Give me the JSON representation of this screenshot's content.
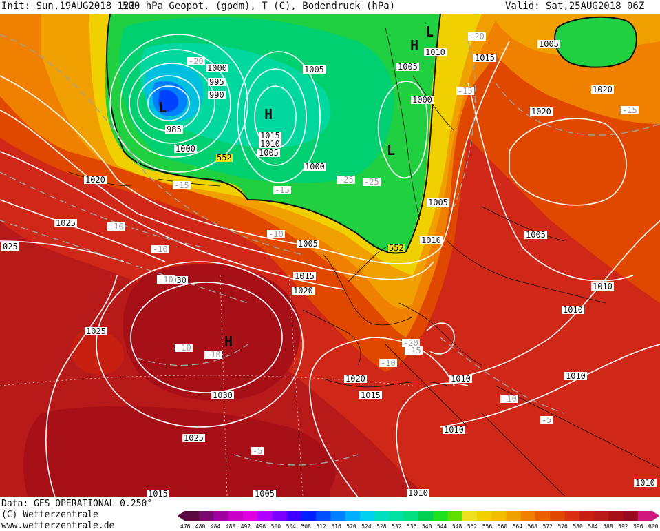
{
  "header": {
    "init": "Init: Sun,19AUG2018 12Z",
    "title": "500 hPa Geopot. (gpdm), T (C), Bodendruck (hPa)",
    "valid": "Valid: Sat,25AUG2018 06Z"
  },
  "map": {
    "pressure_labels": [
      "1000",
      "995",
      "990",
      "985",
      "1000",
      "1005",
      "1005",
      "1015",
      "1010",
      "1005",
      "1000",
      "1010",
      "1015",
      "1005",
      "1000",
      "1005",
      "1020",
      "1005",
      "1010",
      "1020",
      "1025",
      "025",
      "1005",
      "1015",
      "1020",
      "1030",
      "1025",
      "1030",
      "1025",
      "1020",
      "1015",
      "1010",
      "1010",
      "1010",
      "1015",
      "1020",
      "1010",
      "1010",
      "1010",
      "1005",
      "1010"
    ],
    "temp_labels": [
      "-20",
      "-15",
      "-20",
      "-15",
      "-10",
      "-15",
      "-25",
      "-25",
      "-10",
      "-10",
      "-10",
      "-10",
      "-10",
      "-20",
      "-15",
      "-10",
      "-10",
      "-5",
      "-5",
      "-15"
    ],
    "geopot_labels": [
      "552",
      "552"
    ],
    "centers": [
      "L",
      "H",
      "L",
      "H",
      "L",
      "H"
    ]
  },
  "footer": {
    "data_line": "Data: GFS OPERATIONAL 0.250°",
    "copyright": "(C) Wetterzentrale",
    "website": "www.wetterzentrale.de"
  },
  "colorbar": {
    "ticks": [
      "476",
      "480",
      "484",
      "488",
      "492",
      "496",
      "500",
      "504",
      "508",
      "512",
      "516",
      "520",
      "524",
      "528",
      "532",
      "536",
      "540",
      "544",
      "548",
      "552",
      "556",
      "560",
      "564",
      "568",
      "572",
      "576",
      "580",
      "584",
      "588",
      "592",
      "596",
      "600"
    ],
    "colors": [
      "#5a0a40",
      "#7a0a70",
      "#a000a0",
      "#c800c8",
      "#e000e0",
      "#b000ff",
      "#8000ff",
      "#4000ff",
      "#0020ff",
      "#0050ff",
      "#0080ff",
      "#00b0ff",
      "#00d0f0",
      "#00e0c0",
      "#00e0a0",
      "#00e080",
      "#00d050",
      "#20e020",
      "#60e000",
      "#f0e020",
      "#f0d000",
      "#f0c000",
      "#f0a000",
      "#f08000",
      "#e86000",
      "#e04800",
      "#d83010",
      "#c82010",
      "#b81a1a",
      "#a81018",
      "#980a20",
      "#d01880"
    ]
  }
}
